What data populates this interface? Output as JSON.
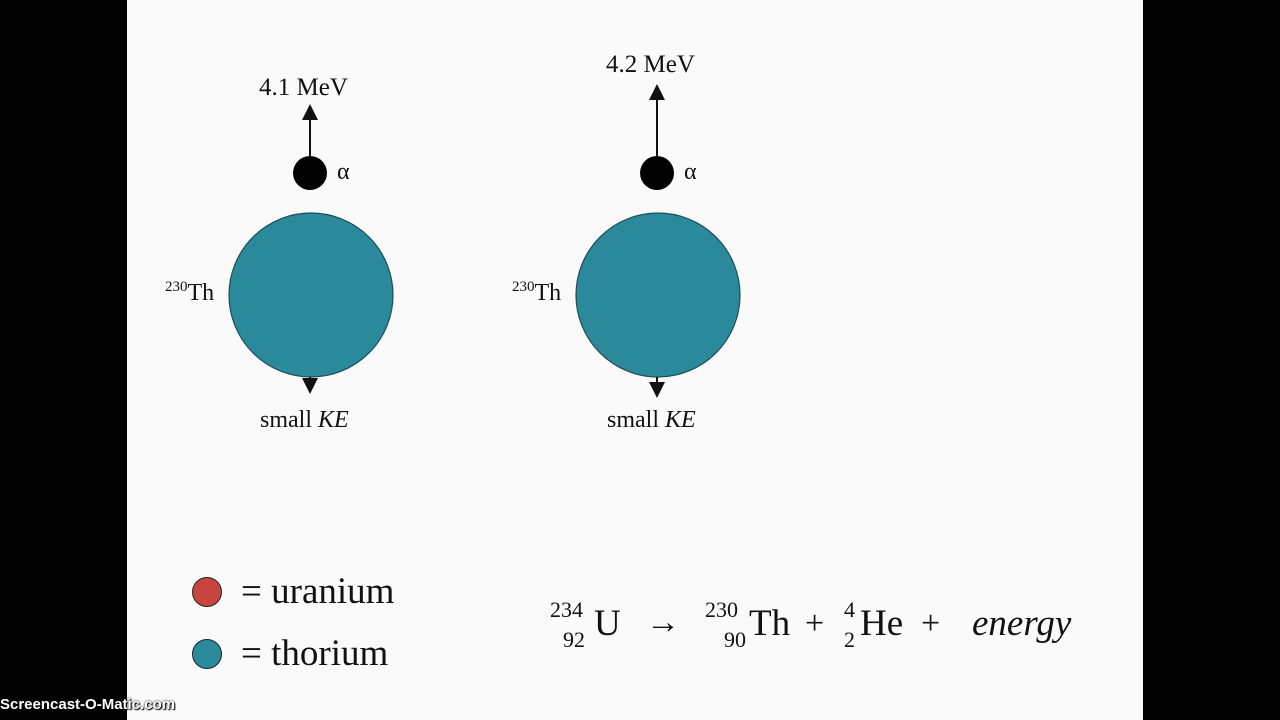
{
  "left_panel": {
    "alpha_energy": "4.1 MeV",
    "alpha_symbol": "α",
    "nucleus_mass": "230",
    "nucleus_symbol": "Th",
    "recoil_label": "small",
    "recoil_var": "KE"
  },
  "right_panel": {
    "alpha_energy": "4.2 MeV",
    "alpha_symbol": "α",
    "nucleus_mass": "230",
    "nucleus_symbol": "Th",
    "recoil_label": "small",
    "recoil_var": "KE"
  },
  "legend": {
    "items": [
      {
        "label": "= uranium",
        "color": "#c8453d"
      },
      {
        "label": "= thorium",
        "color": "#2a8a9c"
      }
    ]
  },
  "equation": {
    "parent_mass": "234",
    "parent_atomic": "92",
    "parent_symbol": "U",
    "arrow": "→",
    "daughter_mass": "230",
    "daughter_atomic": "90",
    "daughter_symbol": "Th",
    "plus1": "+",
    "alpha_mass": "4",
    "alpha_atomic": "2",
    "alpha_symbol": "He",
    "plus2": "+",
    "energy": "energy"
  },
  "colors": {
    "thorium": "#2a8a9c",
    "alpha": "#000000",
    "background": "#fafafa"
  },
  "watermark": "Screencast-O-Matic.com"
}
